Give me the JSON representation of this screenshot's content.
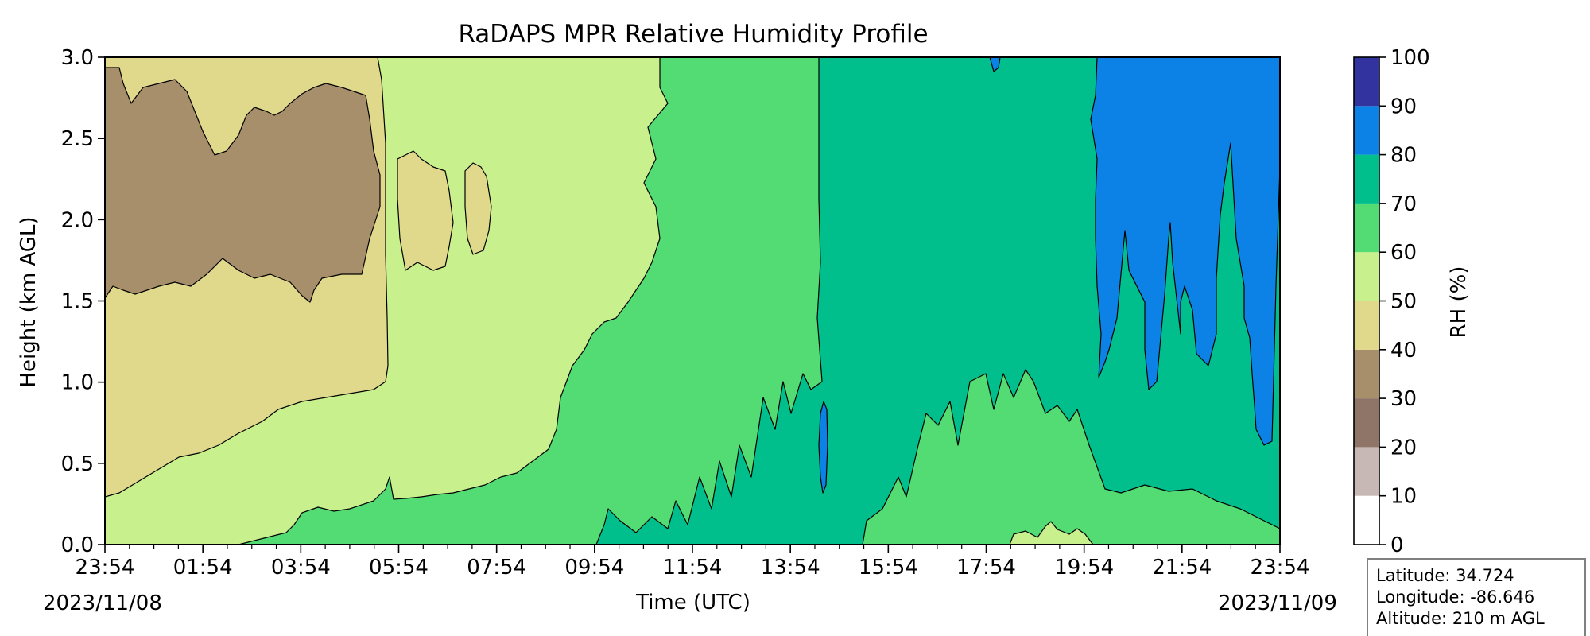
{
  "chart_data": {
    "type": "heatmap",
    "title": "RaDAPS MPR Relative Humidity Profile",
    "xlabel": "Time (UTC)",
    "ylabel": "Height (km AGL)",
    "colorbar_label": "RH (%)",
    "x_ticks": [
      "23:54",
      "01:54",
      "03:54",
      "05:54",
      "07:54",
      "09:54",
      "11:54",
      "13:54",
      "15:54",
      "17:54",
      "19:54",
      "21:54",
      "23:54"
    ],
    "start_date": "2023/11/08",
    "end_date": "2023/11/09",
    "ylim": [
      0,
      3.0
    ],
    "y_ticks": [
      "0.0",
      "0.5",
      "1.0",
      "1.5",
      "2.0",
      "2.5",
      "3.0"
    ],
    "levels": [
      0,
      10,
      20,
      30,
      40,
      50,
      60,
      70,
      80,
      90,
      100
    ],
    "level_colors": [
      "#ffffff",
      "#c7b8b5",
      "#8f7468",
      "#a88f6b",
      "#e0d98c",
      "#c8f08c",
      "#54dc74",
      "#00bf8c",
      "#0d82e6",
      "#3333a0"
    ],
    "legend_placement": "right",
    "grid": false,
    "info_box": {
      "latitude": "Latitude: 34.724",
      "longitude": "Longitude: -86.646",
      "altitude": "Altitude: 210 m AGL"
    }
  }
}
